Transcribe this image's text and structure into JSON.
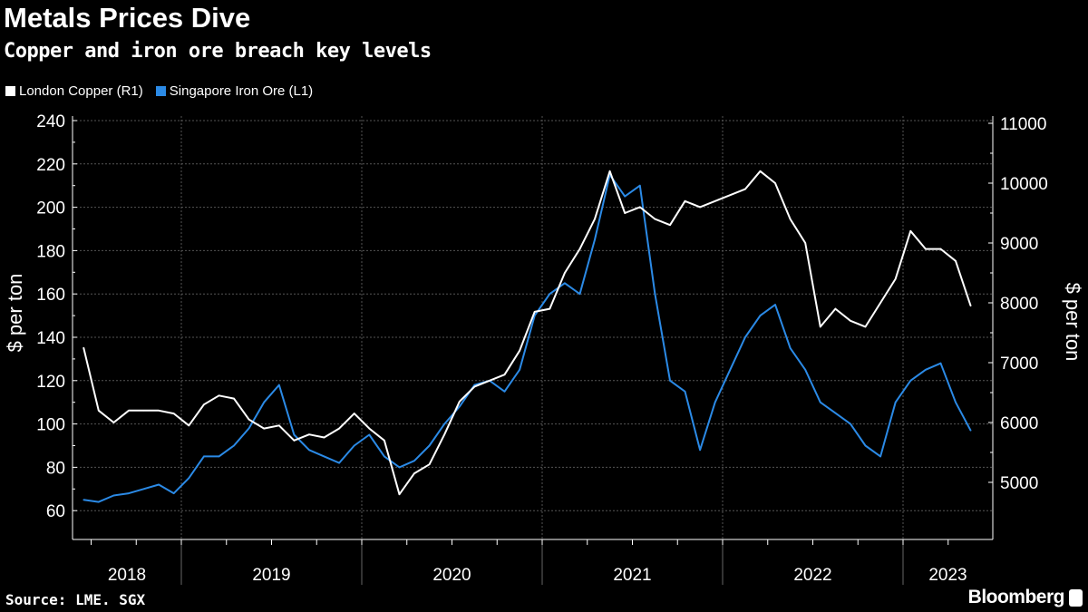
{
  "title": "Metals Prices Dive",
  "subtitle": "Copper and iron ore breach key levels",
  "source": "Source: LME. SGX",
  "brand": "Bloomberg",
  "chart_data": {
    "type": "line",
    "legend_placement": "top-left",
    "grid": true,
    "x_ticks": [
      "2018",
      "2019",
      "2020",
      "2021",
      "2022",
      "2023"
    ],
    "x_range": [
      "2018-06",
      "2023-05"
    ],
    "left_axis": {
      "label": "$ per ton",
      "range": [
        60,
        240
      ],
      "ticks": [
        60,
        80,
        100,
        120,
        140,
        160,
        180,
        200,
        220,
        240
      ]
    },
    "right_axis": {
      "label": "$ per ton",
      "range": [
        5000,
        11000
      ],
      "ticks": [
        5000,
        6000,
        7000,
        8000,
        9000,
        10000,
        11000
      ]
    },
    "colors": {
      "copper": "#ffffff",
      "iron": "#2b8ae6"
    },
    "dates": [
      "2018-06",
      "2018-07",
      "2018-08",
      "2018-09",
      "2018-10",
      "2018-11",
      "2018-12",
      "2019-01",
      "2019-02",
      "2019-03",
      "2019-04",
      "2019-05",
      "2019-06",
      "2019-07",
      "2019-08",
      "2019-09",
      "2019-10",
      "2019-11",
      "2019-12",
      "2020-01",
      "2020-02",
      "2020-03",
      "2020-04",
      "2020-05",
      "2020-06",
      "2020-07",
      "2020-08",
      "2020-09",
      "2020-10",
      "2020-11",
      "2020-12",
      "2021-01",
      "2021-02",
      "2021-03",
      "2021-04",
      "2021-05",
      "2021-06",
      "2021-07",
      "2021-08",
      "2021-09",
      "2021-10",
      "2021-11",
      "2021-12",
      "2022-01",
      "2022-02",
      "2022-03",
      "2022-04",
      "2022-05",
      "2022-06",
      "2022-07",
      "2022-08",
      "2022-09",
      "2022-10",
      "2022-11",
      "2022-12",
      "2023-01",
      "2023-02",
      "2023-03",
      "2023-04",
      "2023-05"
    ],
    "series": [
      {
        "name": "London Copper (R1)",
        "axis": "right",
        "values": [
          7250,
          6200,
          6000,
          6200,
          6200,
          6200,
          6150,
          5950,
          6300,
          6450,
          6400,
          6050,
          5900,
          5950,
          5700,
          5800,
          5750,
          5900,
          6150,
          5900,
          5700,
          4800,
          5150,
          5300,
          5800,
          6350,
          6600,
          6700,
          6800,
          7200,
          7850,
          7900,
          8500,
          8900,
          9400,
          10200,
          9500,
          9600,
          9400,
          9300,
          9700,
          9600,
          9700,
          9800,
          9900,
          10200,
          10000,
          9400,
          9000,
          7600,
          7900,
          7700,
          7600,
          8000,
          8400,
          9200,
          8900,
          8900,
          8700,
          7950
        ]
      },
      {
        "name": "Singapore Iron Ore (L1)",
        "axis": "left",
        "values": [
          65,
          64,
          67,
          68,
          70,
          72,
          68,
          75,
          85,
          85,
          90,
          98,
          110,
          118,
          95,
          88,
          85,
          82,
          90,
          95,
          85,
          80,
          83,
          90,
          100,
          108,
          118,
          120,
          115,
          125,
          150,
          160,
          165,
          160,
          185,
          215,
          205,
          210,
          160,
          120,
          115,
          88,
          110,
          125,
          140,
          150,
          155,
          135,
          125,
          110,
          105,
          100,
          90,
          85,
          110,
          120,
          125,
          128,
          110,
          97
        ]
      }
    ]
  }
}
